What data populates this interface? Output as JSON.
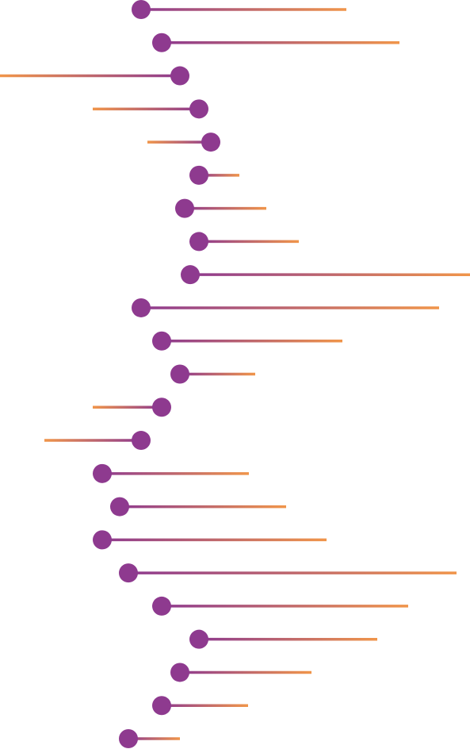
{
  "chart_data": {
    "type": "lollipop",
    "xlim": [
      0,
      593
    ],
    "dot_color": "#8e3a8f",
    "end_color": "#f0954a",
    "starts": [
      178,
      204,
      227,
      251,
      266,
      251,
      233,
      251,
      240,
      178,
      204,
      227,
      204,
      178,
      129,
      151,
      129,
      162,
      204,
      251,
      227,
      204,
      162
    ],
    "ends": [
      437,
      504,
      0,
      117,
      186,
      302,
      336,
      377,
      593,
      554,
      432,
      322,
      117,
      56,
      314,
      361,
      412,
      576,
      515,
      476,
      393,
      313,
      227
    ]
  }
}
